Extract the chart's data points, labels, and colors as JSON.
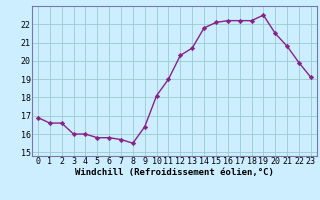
{
  "x": [
    0,
    1,
    2,
    3,
    4,
    5,
    6,
    7,
    8,
    9,
    10,
    11,
    12,
    13,
    14,
    15,
    16,
    17,
    18,
    19,
    20,
    21,
    22,
    23
  ],
  "y": [
    16.9,
    16.6,
    16.6,
    16.0,
    16.0,
    15.8,
    15.8,
    15.7,
    15.5,
    16.4,
    18.1,
    19.0,
    20.3,
    20.7,
    21.8,
    22.1,
    22.2,
    22.2,
    22.2,
    22.5,
    21.5,
    20.8,
    19.9,
    19.1
  ],
  "line_color": "#882288",
  "marker": "D",
  "marker_size": 2.2,
  "linewidth": 1.0,
  "xlabel": "Windchill (Refroidissement éolien,°C)",
  "xlabel_fontsize": 6.5,
  "ylim": [
    14.8,
    23.0
  ],
  "yticks": [
    15,
    16,
    17,
    18,
    19,
    20,
    21,
    22
  ],
  "xticks": [
    0,
    1,
    2,
    3,
    4,
    5,
    6,
    7,
    8,
    9,
    10,
    11,
    12,
    13,
    14,
    15,
    16,
    17,
    18,
    19,
    20,
    21,
    22,
    23
  ],
  "background_color": "#cceeff",
  "grid_color": "#99cccc",
  "tick_fontsize": 6.0,
  "border_color": "#7777aa"
}
